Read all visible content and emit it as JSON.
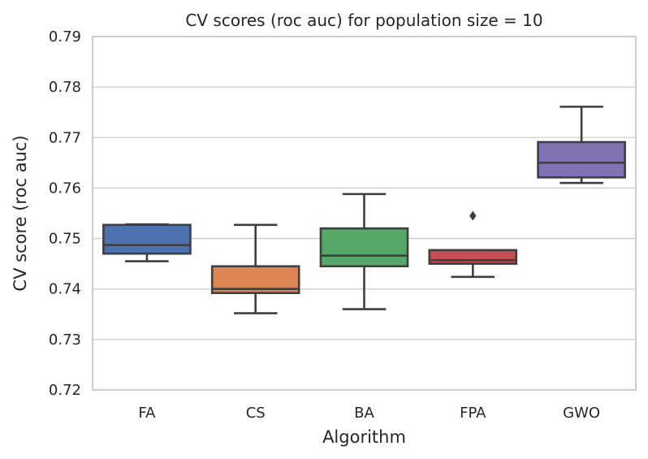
{
  "chart_data": {
    "type": "box",
    "title": "CV scores (roc auc) for population size = 10",
    "xlabel": "Algorithm",
    "ylabel": "CV score (roc auc)",
    "ylim": [
      0.72,
      0.79
    ],
    "yticks": [
      0.72,
      0.73,
      0.74,
      0.75,
      0.76,
      0.77,
      0.78,
      0.79
    ],
    "grid": true,
    "categories": [
      "FA",
      "CS",
      "BA",
      "FPA",
      "GWO"
    ],
    "boxes": [
      {
        "name": "FA",
        "color": "#4c72b0",
        "whislo": 0.7455,
        "q1": 0.747,
        "median": 0.7487,
        "q3": 0.7527,
        "whishi": 0.7528,
        "outliers": []
      },
      {
        "name": "CS",
        "color": "#dd8452",
        "whislo": 0.7352,
        "q1": 0.7392,
        "median": 0.74,
        "q3": 0.7445,
        "whishi": 0.7527,
        "outliers": []
      },
      {
        "name": "BA",
        "color": "#55a868",
        "whislo": 0.736,
        "q1": 0.7445,
        "median": 0.7466,
        "q3": 0.752,
        "whishi": 0.7588,
        "outliers": []
      },
      {
        "name": "FPA",
        "color": "#c44e52",
        "whislo": 0.7424,
        "q1": 0.745,
        "median": 0.7457,
        "q3": 0.7477,
        "whishi": 0.7477,
        "outliers": [
          0.7545
        ]
      },
      {
        "name": "GWO",
        "color": "#8172b3",
        "whislo": 0.761,
        "q1": 0.7621,
        "median": 0.765,
        "q3": 0.7691,
        "whishi": 0.7761,
        "outliers": []
      }
    ]
  }
}
